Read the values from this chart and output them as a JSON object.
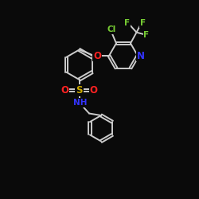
{
  "bg_color": "#0a0a0a",
  "bond_color": "#cccccc",
  "atom_colors": {
    "N": "#3333ff",
    "O": "#ff2222",
    "S": "#ccaa00",
    "Cl": "#77cc33",
    "F": "#77cc33",
    "C": "#cccccc"
  },
  "bond_width": 1.4,
  "font_size": 7.5
}
